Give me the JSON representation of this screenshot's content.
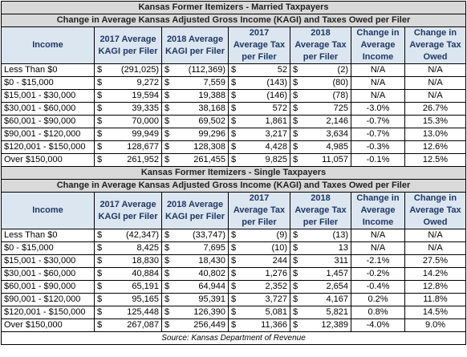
{
  "currency": "$",
  "sections": [
    {
      "title": "Kansas Former Itemizers - Married Taxpayers",
      "subtitle": "Change in Average Kansas Adjusted Gross Income (KAGI) and Taxes Owed per Filer",
      "headers": [
        "Income",
        "2017 Average KAGI per Filer",
        "2018 Average KAGI per Filer",
        "2017 Average Tax per Filer",
        "2018 Average Tax per Filer",
        "Change in Average Income",
        "Change in Average Tax Owed"
      ],
      "rows": [
        [
          "Less Than $0",
          "(291,025)",
          "(112,369)",
          "52",
          "(2)",
          "N/A",
          "N/A"
        ],
        [
          "$0 - $15,000",
          "9,272",
          "7,559",
          "(143)",
          "(80)",
          "N/A",
          "N/A"
        ],
        [
          "$15,001 - $30,000",
          "19,594",
          "19,388",
          "(146)",
          "(78)",
          "N/A",
          "N/A"
        ],
        [
          "$30,001 - $60,000",
          "39,335",
          "38,168",
          "572",
          "725",
          "-3.0%",
          "26.7%"
        ],
        [
          "$60,001 - $90,000",
          "70,000",
          "69,502",
          "1,861",
          "2,146",
          "-0.7%",
          "15.3%"
        ],
        [
          "$90,001 - $120,000",
          "99,949",
          "99,296",
          "3,217",
          "3,634",
          "-0.7%",
          "13.0%"
        ],
        [
          "$120,001 - $150,000",
          "128,677",
          "128,308",
          "4,428",
          "4,985",
          "-0.3%",
          "12.6%"
        ],
        [
          "Over $150,000",
          "261,952",
          "261,455",
          "9,825",
          "11,057",
          "-0.1%",
          "12.5%"
        ]
      ]
    },
    {
      "title": "Kansas Former Itemizers - Single Taxpayers",
      "subtitle": "Change in Average Kansas Adjusted Gross Income (KAGI) and Taxes Owed per Filer",
      "headers": [
        "Income",
        "2017 Average KAGI per Filer",
        "2018 Average KAGI per Filer",
        "2017 Average Tax per Filer",
        "2018 Average Tax per Filer",
        "Change in Average Income",
        "Change in Average Tax Owed"
      ],
      "rows": [
        [
          "Less Than $0",
          "(42,347)",
          "(33,747)",
          "(9)",
          "(13)",
          "N/A",
          "N/A"
        ],
        [
          "$0 - $15,000",
          "8,425",
          "7,695",
          "(10)",
          "13",
          "N/A",
          "N/A"
        ],
        [
          "$15,001 - $30,000",
          "18,830",
          "18,430",
          "244",
          "311",
          "-2.1%",
          "27.5%"
        ],
        [
          "$30,001 - $60,000",
          "40,884",
          "40,802",
          "1,276",
          "1,457",
          "-0.2%",
          "14.2%"
        ],
        [
          "$60,001 - $90,000",
          "65,191",
          "64,944",
          "2,352",
          "2,654",
          "-0.4%",
          "12.8%"
        ],
        [
          "$90,001 - $120,000",
          "95,165",
          "95,391",
          "3,727",
          "4,167",
          "0.2%",
          "11.8%"
        ],
        [
          "$120,001 - $150,000",
          "125,448",
          "126,390",
          "5,081",
          "5,821",
          "0.8%",
          "14.5%"
        ],
        [
          "Over $150,000",
          "267,087",
          "256,449",
          "11,366",
          "12,389",
          "-4.0%",
          "9.0%"
        ]
      ]
    }
  ],
  "source": "Source: Kansas Department of Revenue"
}
